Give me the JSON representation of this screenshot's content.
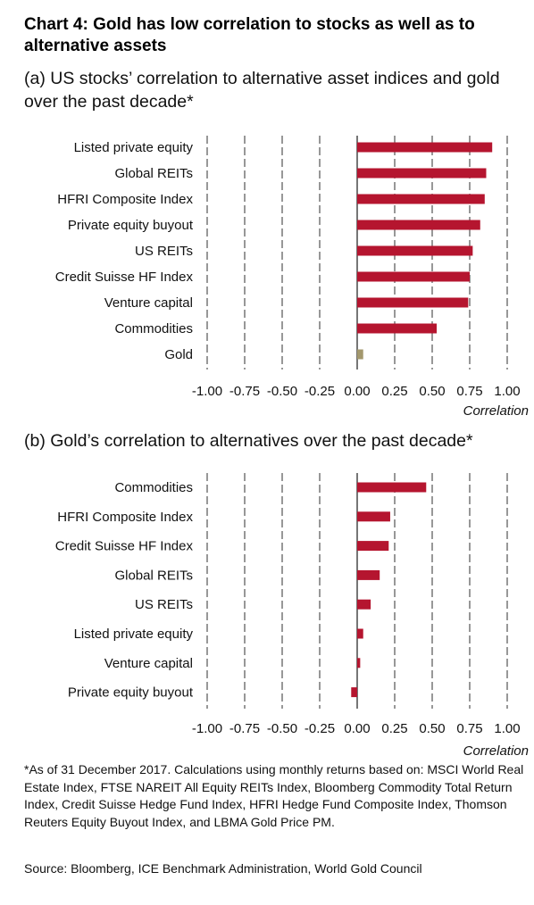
{
  "title": "Chart 4: Gold has low correlation to stocks as well as to alternative assets",
  "footnote": "*As of 31 December 2017. Calculations using monthly returns based on: MSCI World Real Estate Index, FTSE NAREIT All Equity REITs Index, Bloomberg Commodity Total Return Index, Credit Suisse Hedge Fund Index, HFRI Hedge Fund Composite Index, Thomson Reuters Equity Buyout Index, and LBMA Gold Price PM.",
  "source": "Source: Bloomberg, ICE Benchmark Administration, World Gold Council",
  "colors": {
    "bar": "#b5152f",
    "gold_bar": "#a3986d",
    "grid": "#1a1a1a"
  },
  "chart_data": [
    {
      "type": "bar",
      "orientation": "horizontal",
      "subtitle": "(a) US stocks’ correlation to alternative asset indices and gold over the past decade*",
      "categories": [
        "Listed private equity",
        "Global REITs",
        "HFRI Composite Index",
        "Private equity buyout",
        "US REITs",
        "Credit Suisse HF Index",
        "Venture capital",
        "Commodities",
        "Gold"
      ],
      "values": [
        0.9,
        0.86,
        0.85,
        0.82,
        0.77,
        0.75,
        0.74,
        0.53,
        0.04
      ],
      "xlabel": "Correlation",
      "xlim": [
        -1.0,
        1.0
      ],
      "xticks": [
        "-1.00",
        "-0.75",
        "-0.50",
        "-0.25",
        "0.00",
        "0.25",
        "0.50",
        "0.75",
        "1.00"
      ],
      "grid": true,
      "legend": "none"
    },
    {
      "type": "bar",
      "orientation": "horizontal",
      "subtitle": "(b) Gold’s correlation to alternatives over the past decade*",
      "categories": [
        "Commodities",
        "HFRI Composite Index",
        "Credit Suisse HF Index",
        "Global REITs",
        "US REITs",
        "Listed private equity",
        "Venture capital",
        "Private equity buyout"
      ],
      "values": [
        0.46,
        0.22,
        0.21,
        0.15,
        0.09,
        0.04,
        0.02,
        -0.04
      ],
      "xlabel": "Correlation",
      "xlim": [
        -1.0,
        1.0
      ],
      "xticks": [
        "-1.00",
        "-0.75",
        "-0.50",
        "-0.25",
        "0.00",
        "0.25",
        "0.50",
        "0.75",
        "1.00"
      ],
      "grid": true,
      "legend": "none"
    }
  ]
}
